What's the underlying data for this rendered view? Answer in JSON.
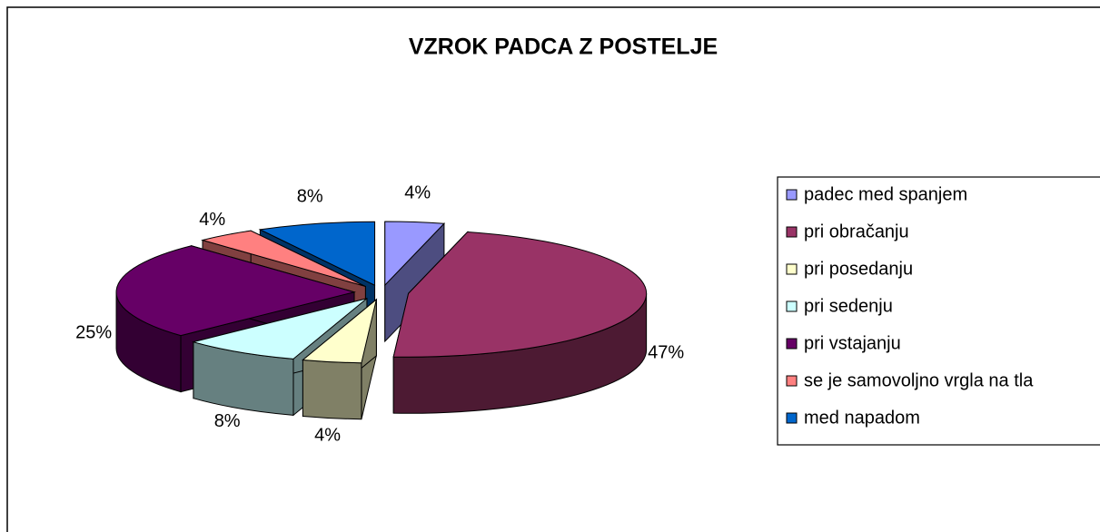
{
  "chart_data": {
    "type": "pie",
    "title": "VZROK PADCA Z POSTELJE",
    "categories": [
      "padec med spanjem",
      "pri obračanju",
      "pri posedanju",
      "pri sedenju",
      "pri vstajanju",
      "se je samovoljno vrgla na tla",
      "med napadom"
    ],
    "values": [
      4,
      47,
      4,
      8,
      25,
      4,
      8
    ],
    "value_labels": [
      "4%",
      "47%",
      "4%",
      "8%",
      "25%",
      "4%",
      "8%"
    ],
    "colors": [
      "#9999ff",
      "#993366",
      "#ffffcc",
      "#ccffff",
      "#660066",
      "#ff8080",
      "#0066cc"
    ],
    "legend": "right"
  }
}
